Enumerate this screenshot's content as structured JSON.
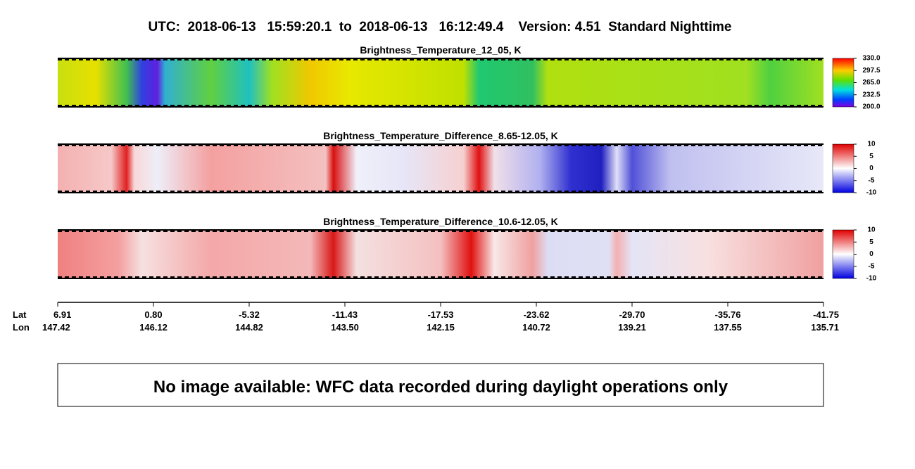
{
  "title": "UTC:  2018-06-13   15:59:20.1  to  2018-06-13   16:12:49.4    Version: 4.51  Standard Nighttime",
  "panels": [
    {
      "title": "Brightness_Temperature_12_05, K",
      "colorbar_ticks": [
        "330.0",
        "297.5",
        "265.0",
        "232.5",
        "200.0"
      ]
    },
    {
      "title": "Brightness_Temperature_Difference_8.65-12.05, K",
      "colorbar_ticks": [
        "10",
        "5",
        "0",
        "-5",
        "-10"
      ]
    },
    {
      "title": "Brightness_Temperature_Difference_10.6-12.05, K",
      "colorbar_ticks": [
        "10",
        "5",
        "0",
        "-5",
        "-10"
      ]
    }
  ],
  "axis": {
    "lat_label": "Lat",
    "lon_label": "Lon",
    "lat": [
      "6.91",
      "0.80",
      "-5.32",
      "-11.43",
      "-17.53",
      "-23.62",
      "-29.70",
      "-35.76",
      "-41.75"
    ],
    "lon": [
      "147.42",
      "146.12",
      "144.82",
      "143.50",
      "142.15",
      "140.72",
      "139.21",
      "137.55",
      "135.71"
    ]
  },
  "notice": "No image available: WFC data recorded during daylight operations only"
}
